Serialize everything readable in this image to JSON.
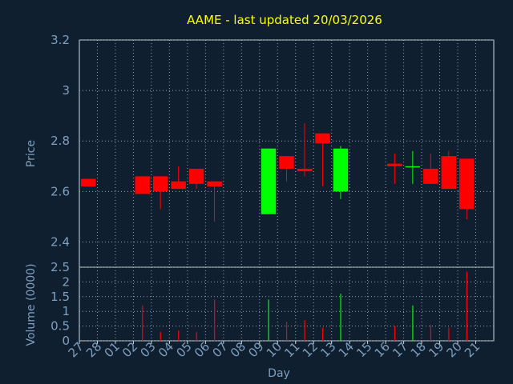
{
  "chart_data": [
    {
      "type": "candlestick",
      "title": "AAME - last updated 20/03/2026",
      "ylabel": "Price",
      "ylim": [
        2.3,
        3.2
      ],
      "y_ticks": [
        "2.4",
        "2.6",
        "2.8",
        "3",
        "3.2"
      ],
      "grid": true,
      "up_color": "#00ff00",
      "down_color": "#ff0000",
      "candles": [
        {
          "day": "27",
          "open": 2.65,
          "close": 2.62,
          "high": 2.65,
          "low": 2.62
        },
        {
          "day": "02",
          "open": 2.66,
          "close": 2.59,
          "high": 2.66,
          "low": 2.59
        },
        {
          "day": "03",
          "open": 2.66,
          "close": 2.6,
          "high": 2.66,
          "low": 2.53
        },
        {
          "day": "04",
          "open": 2.64,
          "close": 2.61,
          "high": 2.7,
          "low": 2.61
        },
        {
          "day": "05",
          "open": 2.69,
          "close": 2.63,
          "high": 2.69,
          "low": 2.61
        },
        {
          "day": "06",
          "open": 2.64,
          "close": 2.62,
          "high": 2.64,
          "low": 2.48
        },
        {
          "day": "09",
          "open": 2.51,
          "close": 2.77,
          "high": 2.77,
          "low": 2.51
        },
        {
          "day": "10",
          "open": 2.74,
          "close": 2.69,
          "high": 2.74,
          "low": 2.64
        },
        {
          "day": "11",
          "open": 2.69,
          "close": 2.68,
          "high": 2.87,
          "low": 2.66
        },
        {
          "day": "12",
          "open": 2.83,
          "close": 2.79,
          "high": 2.83,
          "low": 2.62
        },
        {
          "day": "13",
          "open": 2.6,
          "close": 2.77,
          "high": 2.78,
          "low": 2.57
        },
        {
          "day": "16",
          "open": 2.71,
          "close": 2.7,
          "high": 2.75,
          "low": 2.63
        },
        {
          "day": "17",
          "open": 2.7,
          "close": 2.7,
          "high": 2.76,
          "low": 2.63
        },
        {
          "day": "18",
          "open": 2.69,
          "close": 2.63,
          "high": 2.75,
          "low": 2.63
        },
        {
          "day": "19",
          "open": 2.74,
          "close": 2.61,
          "high": 2.76,
          "low": 2.61
        },
        {
          "day": "20",
          "open": 2.73,
          "close": 2.53,
          "high": 2.73,
          "low": 2.49
        }
      ]
    },
    {
      "type": "bar",
      "ylabel": "Volume (0000)",
      "xlabel": "Day",
      "ylim": [
        0,
        2.5
      ],
      "y_ticks": [
        "0",
        "0.5",
        "1",
        "1.5",
        "2",
        "2.5"
      ],
      "grid": true,
      "categories": [
        "27",
        "28",
        "01",
        "02",
        "03",
        "04",
        "05",
        "06",
        "07",
        "08",
        "09",
        "10",
        "11",
        "12",
        "13",
        "14",
        "15",
        "16",
        "17",
        "18",
        "19",
        "20",
        "21"
      ],
      "bars": [
        {
          "day": "02",
          "value": 1.2,
          "color": "#ff0000"
        },
        {
          "day": "03",
          "value": 0.3,
          "color": "#ff0000"
        },
        {
          "day": "04",
          "value": 0.35,
          "color": "#ff0000"
        },
        {
          "day": "05",
          "value": 0.3,
          "color": "#ff0000"
        },
        {
          "day": "06",
          "value": 1.4,
          "color": "#ff0000"
        },
        {
          "day": "09",
          "value": 1.4,
          "color": "#00ff00"
        },
        {
          "day": "10",
          "value": 0.65,
          "color": "#ff0000"
        },
        {
          "day": "11",
          "value": 0.7,
          "color": "#ff0000"
        },
        {
          "day": "12",
          "value": 0.45,
          "color": "#ff0000"
        },
        {
          "day": "13",
          "value": 1.6,
          "color": "#00ff00"
        },
        {
          "day": "16",
          "value": 0.5,
          "color": "#ff0000"
        },
        {
          "day": "17",
          "value": 1.2,
          "color": "#00ff00"
        },
        {
          "day": "18",
          "value": 0.55,
          "color": "#ff0000"
        },
        {
          "day": "19",
          "value": 0.45,
          "color": "#ff0000"
        },
        {
          "day": "20",
          "value": 2.35,
          "color": "#ff0000"
        }
      ]
    }
  ]
}
